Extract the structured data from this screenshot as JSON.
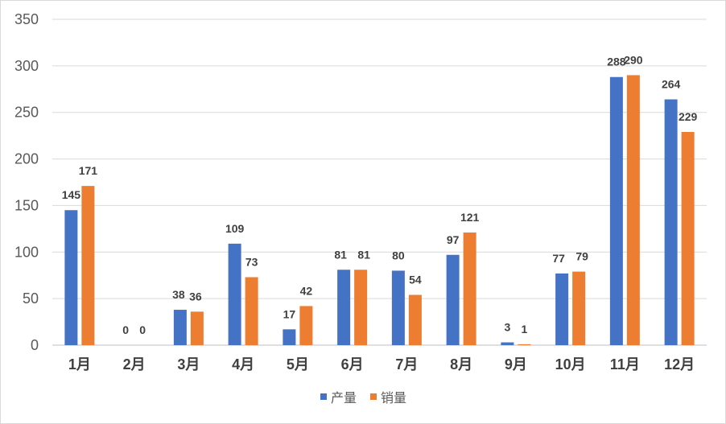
{
  "chart_data": {
    "type": "bar",
    "categories": [
      "1月",
      "2月",
      "3月",
      "4月",
      "5月",
      "6月",
      "7月",
      "8月",
      "9月",
      "10月",
      "11月",
      "12月"
    ],
    "series": [
      {
        "name": "产量",
        "color": "#4472c4",
        "values": [
          145,
          0,
          38,
          109,
          17,
          81,
          80,
          97,
          3,
          77,
          288,
          264
        ]
      },
      {
        "name": "销量",
        "color": "#ed7d31",
        "values": [
          171,
          0,
          36,
          73,
          42,
          81,
          54,
          121,
          1,
          79,
          290,
          229
        ]
      }
    ],
    "ylim": [
      0,
      350
    ],
    "yticks": [
      0,
      50,
      100,
      150,
      200,
      250,
      300,
      350
    ],
    "grid": true,
    "legend_position": "bottom",
    "data_labels": true
  }
}
